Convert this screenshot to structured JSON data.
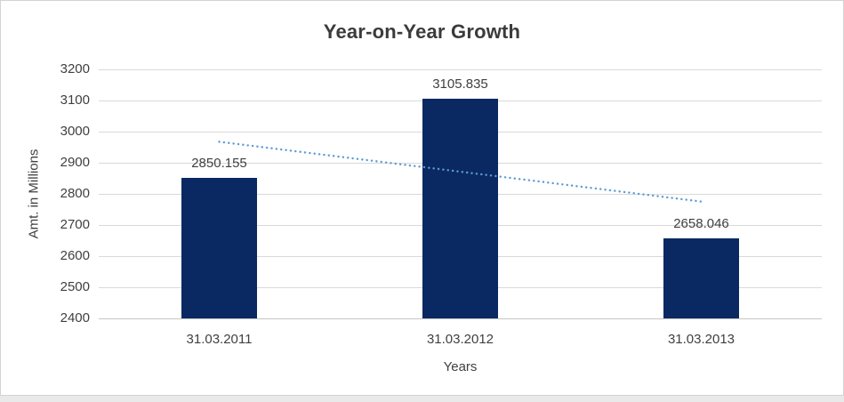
{
  "page": {
    "background": "#E9E9E9",
    "frame_background": "#FFFFFF",
    "frame_border": "#D3D3D3"
  },
  "chart_data": {
    "type": "bar",
    "title": "Year-on-Year Growth",
    "xlabel": "Years",
    "ylabel": "Amt. in Millions",
    "categories": [
      "31.03.2011",
      "31.03.2012",
      "31.03.2013"
    ],
    "values": [
      2850.155,
      3105.835,
      2658.046
    ],
    "data_labels": [
      "2850.155",
      "3105.835",
      "2658.046"
    ],
    "ylim": [
      2400,
      3200
    ],
    "yticks": [
      3200,
      3100,
      3000,
      2900,
      2800,
      2700,
      2600,
      2500,
      2400
    ],
    "grid": true,
    "legend": "none",
    "bar_color": "#0A2962",
    "gridline_color": "#D9D9D9",
    "axis_line_color": "#C6C6C6",
    "label_color": "#404040",
    "title_color": "#3B3B3B",
    "trendline": {
      "type": "linear",
      "style": "dotted",
      "color": "#5B9BD5",
      "start_value": 2967.4,
      "end_value": 2775.3
    }
  }
}
